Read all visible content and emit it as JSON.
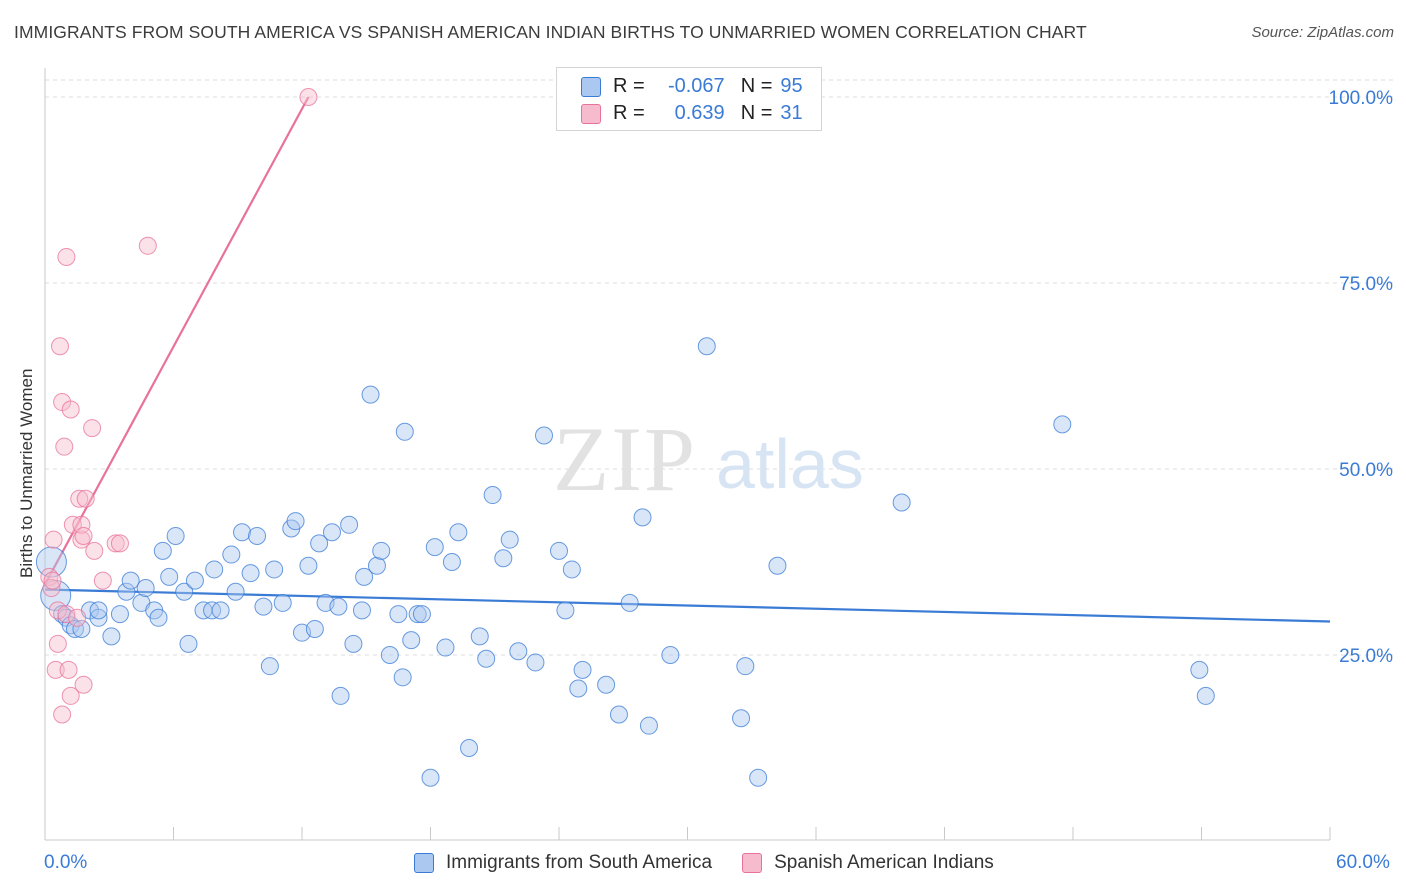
{
  "title": "IMMIGRANTS FROM SOUTH AMERICA VS SPANISH AMERICAN INDIAN BIRTHS TO UNMARRIED WOMEN CORRELATION CHART",
  "source": "Source: ZipAtlas.com",
  "watermark": {
    "zip": "ZIP",
    "atlas": "atlas"
  },
  "colors": {
    "blue": "#3a7bd5",
    "blue_fill": "#aac8f0",
    "pink": "#e8729a",
    "pink_fill": "#f6bccd",
    "axis_text": "#3a7bd5"
  },
  "stats": {
    "rows": [
      {
        "r_label": "R =",
        "r_value": "-0.067",
        "n_label": "N =",
        "n_value": "95",
        "color": "blue"
      },
      {
        "r_label": "R =",
        "r_value": "0.639",
        "n_label": "N =",
        "n_value": "31",
        "color": "pink"
      }
    ]
  },
  "legend": [
    "Immigrants from South America",
    "Spanish American Indians"
  ],
  "axes": {
    "x_min_label": "0.0%",
    "x_max_label": "60.0%"
  },
  "chart_data": {
    "type": "scatter",
    "xlabel": "",
    "ylabel": "Births to Unmarried Women",
    "xlim": [
      0,
      60
    ],
    "ylim": [
      0,
      105
    ],
    "ytick_values": [
      25,
      50,
      75,
      100
    ],
    "ytick_labels": [
      "25.0%",
      "50.0%",
      "75.0%",
      "100.0%"
    ],
    "grid": true,
    "legend_position": "bottom-center",
    "series": [
      {
        "name": "Immigrants from South America",
        "color": "#3a7bd5",
        "trend": {
          "x": [
            0,
            60
          ],
          "y": [
            33.8,
            29.5
          ]
        },
        "points": [
          [
            0.3,
            37.5
          ],
          [
            0.5,
            33
          ],
          [
            0.8,
            30.5
          ],
          [
            1.0,
            30
          ],
          [
            1.2,
            29
          ],
          [
            1.4,
            28.5
          ],
          [
            1.7,
            28.5
          ],
          [
            2.1,
            31
          ],
          [
            2.5,
            30
          ],
          [
            2.5,
            31
          ],
          [
            3.1,
            27.5
          ],
          [
            3.5,
            30.5
          ],
          [
            3.8,
            33.5
          ],
          [
            4.0,
            35
          ],
          [
            4.5,
            32
          ],
          [
            4.7,
            34
          ],
          [
            5.1,
            31
          ],
          [
            5.3,
            30
          ],
          [
            5.5,
            39
          ],
          [
            5.8,
            35.5
          ],
          [
            6.1,
            41
          ],
          [
            6.5,
            33.5
          ],
          [
            6.7,
            26.5
          ],
          [
            7.0,
            35
          ],
          [
            7.4,
            31
          ],
          [
            7.8,
            31
          ],
          [
            7.9,
            36.5
          ],
          [
            8.2,
            31
          ],
          [
            8.7,
            38.5
          ],
          [
            8.9,
            33.5
          ],
          [
            9.2,
            41.5
          ],
          [
            9.6,
            36
          ],
          [
            9.9,
            41
          ],
          [
            10.2,
            31.5
          ],
          [
            10.5,
            23.5
          ],
          [
            10.7,
            36.5
          ],
          [
            11.1,
            32
          ],
          [
            11.5,
            42
          ],
          [
            11.7,
            43
          ],
          [
            12.0,
            28
          ],
          [
            12.3,
            37
          ],
          [
            12.6,
            28.5
          ],
          [
            12.8,
            40
          ],
          [
            13.1,
            32
          ],
          [
            13.4,
            41.5
          ],
          [
            13.7,
            31.5
          ],
          [
            13.8,
            19.5
          ],
          [
            14.2,
            42.5
          ],
          [
            14.4,
            26.5
          ],
          [
            14.8,
            31
          ],
          [
            14.9,
            35.5
          ],
          [
            15.2,
            60
          ],
          [
            15.5,
            37
          ],
          [
            15.7,
            39
          ],
          [
            16.1,
            25
          ],
          [
            16.5,
            30.5
          ],
          [
            16.7,
            22
          ],
          [
            16.8,
            55
          ],
          [
            17.1,
            27
          ],
          [
            17.4,
            30.5
          ],
          [
            17.6,
            30.5
          ],
          [
            18.0,
            8.5
          ],
          [
            18.2,
            39.5
          ],
          [
            18.7,
            26
          ],
          [
            19.0,
            37.5
          ],
          [
            19.3,
            41.5
          ],
          [
            19.8,
            12.5
          ],
          [
            20.3,
            27.5
          ],
          [
            20.6,
            24.5
          ],
          [
            20.9,
            46.5
          ],
          [
            21.4,
            38
          ],
          [
            21.7,
            40.5
          ],
          [
            22.1,
            25.5
          ],
          [
            22.9,
            24
          ],
          [
            23.3,
            54.5
          ],
          [
            24.0,
            39
          ],
          [
            24.3,
            31
          ],
          [
            24.6,
            36.5
          ],
          [
            24.9,
            20.5
          ],
          [
            25.1,
            23
          ],
          [
            26.2,
            21
          ],
          [
            26.8,
            17
          ],
          [
            27.3,
            32
          ],
          [
            27.9,
            43.5
          ],
          [
            28.2,
            15.5
          ],
          [
            29.2,
            25
          ],
          [
            30.9,
            66.5
          ],
          [
            32.5,
            16.5
          ],
          [
            32.7,
            23.5
          ],
          [
            33.3,
            8.5
          ],
          [
            34.2,
            37
          ],
          [
            40.0,
            45.5
          ],
          [
            47.5,
            56
          ],
          [
            53.9,
            23
          ],
          [
            54.2,
            19.5
          ]
        ]
      },
      {
        "name": "Spanish American Indians",
        "color": "#e8729a",
        "trend": {
          "x": [
            0,
            12.3
          ],
          "y": [
            34.5,
            100
          ]
        },
        "points": [
          [
            0.2,
            35.5
          ],
          [
            0.3,
            34
          ],
          [
            0.4,
            40.5
          ],
          [
            0.5,
            23
          ],
          [
            0.6,
            31
          ],
          [
            0.6,
            26.5
          ],
          [
            0.7,
            66.5
          ],
          [
            0.8,
            17
          ],
          [
            0.8,
            59
          ],
          [
            0.9,
            53
          ],
          [
            1.0,
            30.5
          ],
          [
            1.0,
            78.5
          ],
          [
            1.1,
            23
          ],
          [
            1.2,
            19.5
          ],
          [
            1.2,
            58
          ],
          [
            1.3,
            42.5
          ],
          [
            1.5,
            30
          ],
          [
            1.6,
            46
          ],
          [
            1.7,
            40.5
          ],
          [
            1.7,
            42.5
          ],
          [
            1.8,
            21
          ],
          [
            1.8,
            41
          ],
          [
            1.9,
            46
          ],
          [
            2.2,
            55.5
          ],
          [
            2.3,
            39
          ],
          [
            2.7,
            35
          ],
          [
            3.3,
            40
          ],
          [
            3.5,
            40
          ],
          [
            4.8,
            80
          ],
          [
            12.3,
            100
          ],
          [
            0.35,
            35
          ]
        ]
      }
    ]
  }
}
